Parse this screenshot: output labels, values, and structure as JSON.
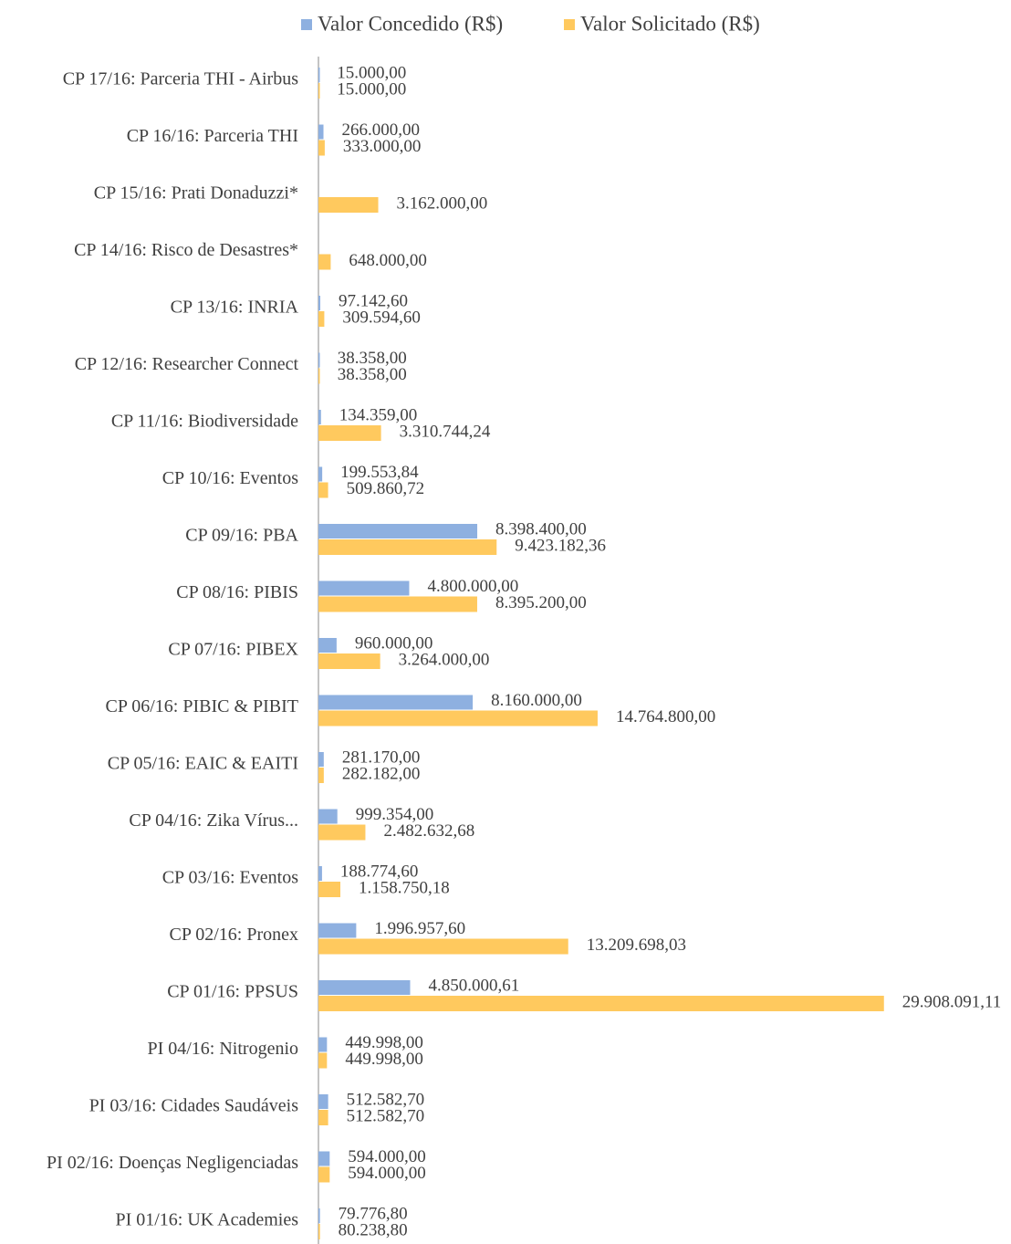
{
  "chart_data": {
    "type": "hbar",
    "categories": [
      "CP 17/16: Parceria THI - Airbus",
      "CP 16/16: Parceria THI",
      "CP 15/16: Prati Donaduzzi*",
      "CP 14/16: Risco de Desastres*",
      "CP 13/16: INRIA",
      "CP 12/16: Researcher Connect",
      "CP 11/16: Biodiversidade",
      "CP 10/16: Eventos",
      "CP 09/16: PBA",
      "CP 08/16: PIBIS",
      "CP 07/16: PIBEX",
      "CP 06/16: PIBIC & PIBIT",
      "CP 05/16: EAIC & EAITI",
      "CP 04/16: Zika Vírus...",
      "CP 03/16: Eventos",
      "CP 02/16: Pronex",
      "CP 01/16: PPSUS",
      "PI 04/16: Nitrogenio",
      "PI 03/16: Cidades Saudáveis",
      "PI 02/16: Doenças Negligenciadas",
      "PI 01/16: UK Academies"
    ],
    "series": [
      {
        "name": "Valor Concedido (R$)",
        "color": "#8eb0e0",
        "values": [
          15000,
          266000,
          null,
          null,
          97142.6,
          38358,
          134359,
          199553.84,
          8398400,
          4800000,
          960000,
          8160000,
          281170,
          999354,
          188774.6,
          1996957.6,
          4850000.61,
          449998,
          512582.7,
          594000,
          79776.8
        ],
        "value_labels": [
          "15.000,00",
          "266.000,00",
          null,
          null,
          "97.142,60",
          "38.358,00",
          "134.359,00",
          "199.553,84",
          "8.398.400,00",
          "4.800.000,00",
          "960.000,00",
          "8.160.000,00",
          "281.170,00",
          "999.354,00",
          "188.774,60",
          "1.996.957,60",
          "4.850.000,61",
          "449.998,00",
          "512.582,70",
          "594.000,00",
          "79.776,80"
        ]
      },
      {
        "name": "Valor Solicitado (R$)",
        "color": "#ffc95e",
        "values": [
          15000,
          333000,
          3162000,
          648000,
          309594.6,
          38358,
          3310744.24,
          509860.72,
          9423182.36,
          8395200,
          3264000,
          14764800,
          282182,
          2482632.68,
          1158750.18,
          13209698.03,
          29908091.11,
          449998,
          512582.7,
          594000,
          80238.8
        ],
        "value_labels": [
          "15.000,00",
          "333.000,00",
          "3.162.000,00",
          "648.000,00",
          "309.594,60",
          "38.358,00",
          "3.310.744,24",
          "509.860,72",
          "9.423.182,36",
          "8.395.200,00",
          "3.264.000,00",
          "14.764.800,00",
          "282.182,00",
          "2.482.632,68",
          "1.158.750,18",
          "13.209.698,03",
          "29.908.091,11",
          "449.998,00",
          "512.582,70",
          "594.000,00",
          "80.238,80"
        ]
      }
    ],
    "xlim": [
      0,
      36000000
    ]
  }
}
